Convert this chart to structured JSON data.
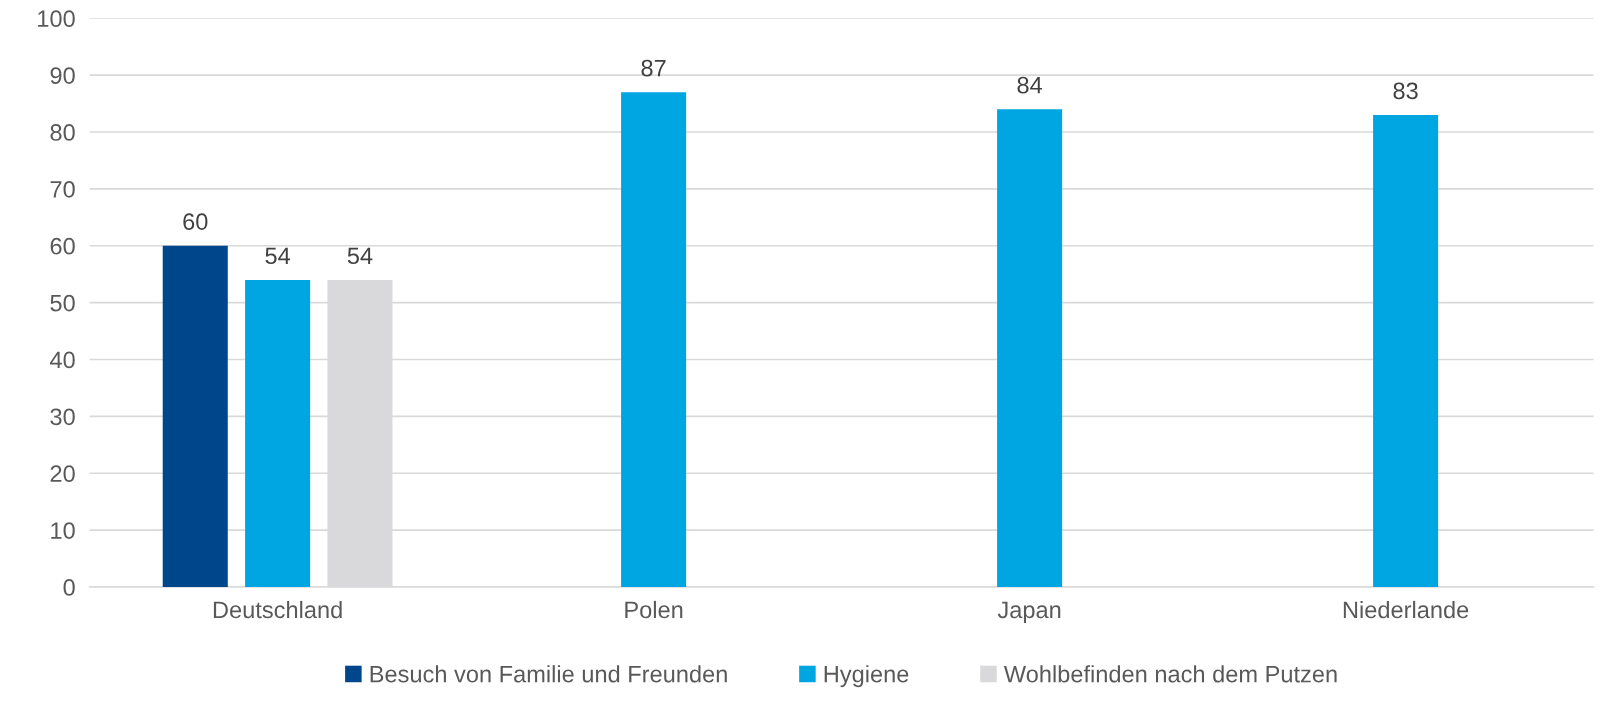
{
  "chart_data": {
    "type": "bar",
    "categories": [
      "Deutschland",
      "Polen",
      "Japan",
      "Niederlande"
    ],
    "series": [
      {
        "name": "Besuch von Familie und Freunden",
        "color": "#00468b",
        "values": [
          60,
          null,
          null,
          null
        ]
      },
      {
        "name": "Hygiene",
        "color": "#00a6e2",
        "values": [
          54,
          87,
          84,
          83
        ]
      },
      {
        "name": "Wohlbefinden nach dem Putzen",
        "color": "#d9d9db",
        "values": [
          54,
          null,
          null,
          null
        ]
      }
    ],
    "ylim": [
      0,
      100
    ],
    "yticks": [
      0,
      10,
      20,
      30,
      40,
      50,
      60,
      70,
      80,
      90,
      100
    ],
    "grid": "y",
    "legend": "bottom",
    "data_labels": true
  }
}
